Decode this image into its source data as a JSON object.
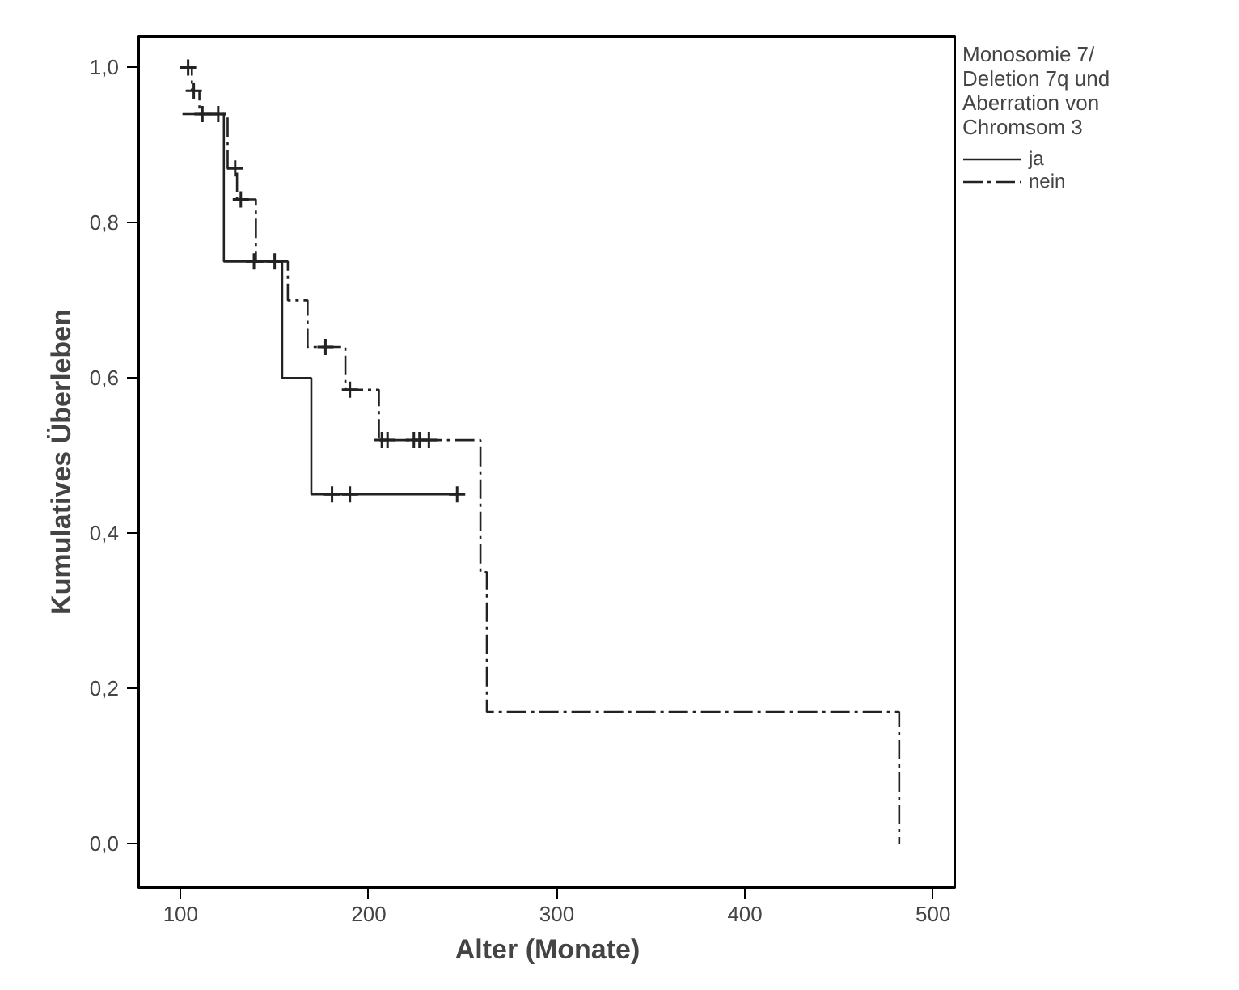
{
  "chart_data": {
    "type": "step",
    "xlabel": "Alter (Monate)",
    "ylabel": "Kumulatives Überleben",
    "legend_title": "Monosomie 7/\nDeletion 7q und\nAberration von\nChromsom 3",
    "legend": "right",
    "grid": false,
    "xlim": [
      77.5,
      512.6
    ],
    "ylim": [
      -0.056,
      1.04
    ],
    "xticks": [
      100,
      200,
      300,
      400,
      500
    ],
    "yticks": [
      {
        "value": 0,
        "label": "0,0"
      },
      {
        "value": 0.2,
        "label": "0,2"
      },
      {
        "value": 0.4,
        "label": "0,4"
      },
      {
        "value": 0.6,
        "label": "0,6"
      },
      {
        "value": 0.8,
        "label": "0,8"
      },
      {
        "value": 1.0,
        "label": "1,0"
      }
    ],
    "series": [
      {
        "name": "ja",
        "type": "step",
        "color": "#222222",
        "line_style": "solid",
        "x": [
          101,
          123,
          154,
          169.5,
          247.6
        ],
        "values": [
          0.94,
          0.75,
          0.6,
          0.45,
          0.45
        ]
      },
      {
        "name": "nein",
        "type": "step",
        "color": "#222222",
        "line_style": "dashdot",
        "x": [
          100,
          106,
          110,
          125,
          130,
          140,
          157,
          167.5,
          187.6,
          205.4,
          259.4,
          262.8,
          482
        ],
        "values": [
          1.0,
          0.97,
          0.94,
          0.87,
          0.83,
          0.75,
          0.7,
          0.64,
          0.585,
          0.52,
          0.35,
          0.17,
          0.0
        ]
      },
      {
        "type": "scatter",
        "marker": "cross",
        "color": "#222222",
        "x": [
          111.6,
          120,
          139,
          150,
          180.5,
          190,
          247
        ],
        "values": [
          0.94,
          0.94,
          0.75,
          0.75,
          0.45,
          0.45,
          0.45
        ]
      },
      {
        "type": "scatter",
        "marker": "cross",
        "color": "#222222",
        "x": [
          104,
          107,
          129,
          132,
          177,
          190,
          207,
          210,
          224,
          227,
          232
        ],
        "values": [
          1.0,
          0.97,
          0.87,
          0.83,
          0.64,
          0.585,
          0.52,
          0.52,
          0.52,
          0.52,
          0.52
        ]
      }
    ]
  }
}
